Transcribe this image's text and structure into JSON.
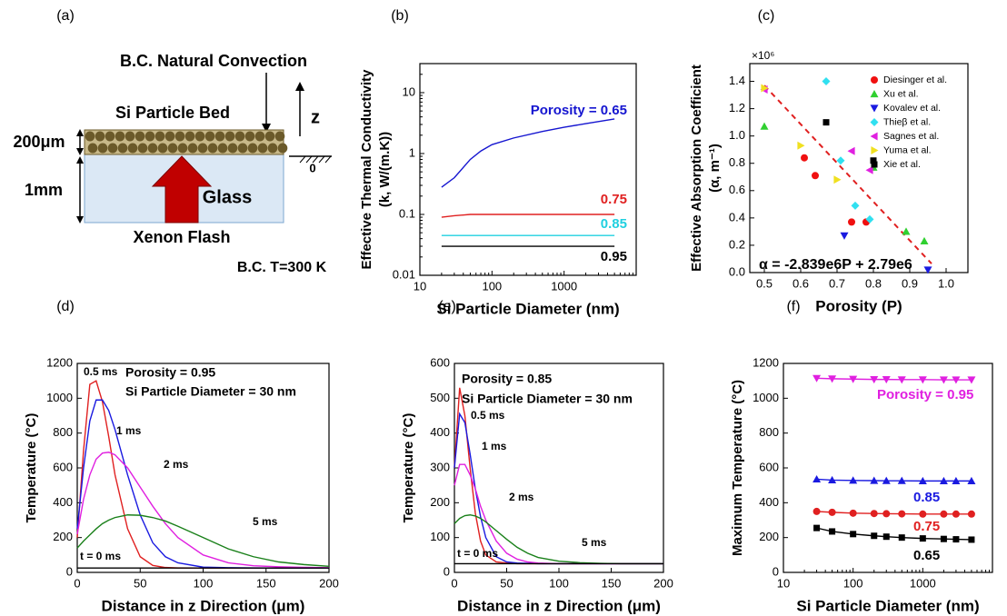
{
  "diagram": {
    "label": "(a)",
    "top_bc": "B.C. Natural Convection",
    "bed": "Si Particle Bed",
    "thickness_bed": "200μm",
    "thickness_glass": "1mm",
    "glass": "Glass",
    "source": "Xenon Flash",
    "bottom_bc": "B.C. T=300 K",
    "z_axis": "z",
    "origin": "0"
  },
  "chart_data": [
    {
      "type": "line",
      "label": "(b)",
      "xlabel": "Si Particle Diameter (nm)",
      "ylabel": [
        "Effective Thermal Conductivity",
        "(k, W/(m.K))"
      ],
      "xscale": "log",
      "yscale": "log",
      "xlim": [
        10,
        10000
      ],
      "ylim": [
        0.01,
        30
      ],
      "xticks": [
        10,
        100,
        1000
      ],
      "yticks": [
        0.01,
        0.1,
        1,
        10
      ],
      "x": [
        20,
        30,
        50,
        70,
        100,
        200,
        500,
        1000,
        2000,
        5000
      ],
      "series": [
        {
          "name": "Porosity = 0.65",
          "color": "#1515d0",
          "values": [
            0.28,
            0.4,
            0.8,
            1.1,
            1.4,
            1.8,
            2.3,
            2.7,
            3.1,
            3.7
          ]
        },
        {
          "name": "0.75",
          "color": "#e02020",
          "values": [
            0.09,
            0.095,
            0.1,
            0.1,
            0.1,
            0.1,
            0.1,
            0.1,
            0.1,
            0.1
          ]
        },
        {
          "name": "0.85",
          "color": "#20d0e0",
          "values": [
            0.045,
            0.045,
            0.045,
            0.045,
            0.045,
            0.045,
            0.045,
            0.045,
            0.045,
            0.045
          ]
        },
        {
          "name": "0.95",
          "color": "#000000",
          "values": [
            0.03,
            0.03,
            0.03,
            0.03,
            0.03,
            0.03,
            0.03,
            0.03,
            0.03,
            0.03
          ]
        }
      ]
    },
    {
      "type": "scatter",
      "label": "(c)",
      "xlabel": "Porosity (P)",
      "ylabel": [
        "Effective Absorption Coefficient",
        "(α, m⁻¹)"
      ],
      "xlim": [
        0.46,
        1.06
      ],
      "ylim": [
        0,
        1.53
      ],
      "xticks": [
        0.5,
        0.6,
        0.7,
        0.8,
        0.9,
        {
          "value": 1.0,
          "label": "1.0"
        }
      ],
      "yticks": [
        {
          "value": 0,
          "label": "0.0"
        },
        0.2,
        0.4,
        0.6,
        0.8,
        {
          "value": 1.0,
          "label": "1.0"
        },
        1.2,
        1.4
      ],
      "y_multiplier": "×10⁶",
      "legend": "upper right",
      "annotations": [
        "α = -2.839e6P + 2.79e6"
      ],
      "fit": {
        "color": "#e02020",
        "dash": true,
        "x": [
          0.5,
          0.96
        ],
        "values": [
          1.37,
          0.065
        ]
      },
      "series": [
        {
          "name": "Diesinger et al.",
          "color": "#f01010",
          "marker": "circle",
          "x": [
            0.61,
            0.64,
            0.74,
            0.78
          ],
          "values": [
            0.84,
            0.71,
            0.37,
            0.37
          ]
        },
        {
          "name": "Xu et al.",
          "color": "#30d030",
          "marker": "triangle-up",
          "x": [
            0.5,
            0.8,
            0.89,
            0.94
          ],
          "values": [
            1.07,
            0.77,
            0.3,
            0.23
          ]
        },
        {
          "name": "Kovalev et al.",
          "color": "#1a1ae0",
          "marker": "triangle-down",
          "x": [
            0.72,
            0.95
          ],
          "values": [
            0.27,
            0.02
          ]
        },
        {
          "name": "Thieβ et al.",
          "color": "#30e0f0",
          "marker": "diamond",
          "x": [
            0.67,
            0.71,
            0.75,
            0.79
          ],
          "values": [
            1.4,
            0.82,
            0.49,
            0.39
          ]
        },
        {
          "name": "Sagnes et al.",
          "color": "#e020e0",
          "marker": "triangle-left",
          "x": [
            0.5,
            0.74,
            0.79
          ],
          "values": [
            1.34,
            0.89,
            0.75
          ]
        },
        {
          "name": "Yuma et al.",
          "color": "#f0e020",
          "marker": "triangle-right",
          "x": [
            0.5,
            0.6,
            0.7
          ],
          "values": [
            1.35,
            0.93,
            0.68
          ]
        },
        {
          "name": "Xie et al.",
          "color": "#000000",
          "marker": "square",
          "x": [
            0.67,
            0.8
          ],
          "values": [
            1.1,
            0.82
          ]
        }
      ]
    },
    {
      "type": "line",
      "label": "(d)",
      "xlabel": "Distance in z Direction (μm)",
      "ylabel": "Temperature (°C)",
      "xlim": [
        0,
        200
      ],
      "ylim": [
        0,
        1200
      ],
      "xticks": [
        0,
        50,
        100,
        150,
        200
      ],
      "yticks": [
        0,
        200,
        400,
        600,
        800,
        1000,
        1200
      ],
      "annotations": [
        "Porosity = 0.95",
        "Si Particle Diameter = 30 nm"
      ],
      "x": [
        0,
        5,
        10,
        15,
        20,
        25,
        30,
        40,
        50,
        60,
        70,
        80,
        100,
        120,
        140,
        160,
        180,
        200
      ],
      "series": [
        {
          "name": "0.5 ms",
          "color": "#e02020",
          "values": [
            200,
            700,
            1080,
            1100,
            980,
            780,
            560,
            250,
            90,
            40,
            28,
            26,
            25,
            25,
            25,
            25,
            25,
            25
          ]
        },
        {
          "name": "1 ms",
          "color": "#1a1ae0",
          "values": [
            250,
            600,
            870,
            990,
            990,
            930,
            820,
            560,
            330,
            170,
            90,
            55,
            30,
            27,
            26,
            25,
            25,
            25
          ]
        },
        {
          "name": "2 ms",
          "color": "#e020e0",
          "values": [
            220,
            420,
            560,
            650,
            685,
            690,
            675,
            600,
            490,
            380,
            280,
            200,
            100,
            55,
            38,
            32,
            29,
            27
          ]
        },
        {
          "name": "5 ms",
          "color": "#1a801a",
          "values": [
            140,
            180,
            215,
            250,
            280,
            300,
            315,
            330,
            328,
            315,
            295,
            265,
            200,
            135,
            90,
            60,
            45,
            35
          ]
        },
        {
          "name": "t = 0 ms",
          "color": "#000000",
          "values": [
            25,
            25,
            25,
            25,
            25,
            25,
            25,
            25,
            25,
            25,
            25,
            25,
            25,
            25,
            25,
            25,
            25,
            25
          ]
        }
      ]
    },
    {
      "type": "line",
      "label": "(e)",
      "xlabel": "Distance in z Direction (μm)",
      "ylabel": "Temperature (°C)",
      "xlim": [
        0,
        200
      ],
      "ylim": [
        0,
        600
      ],
      "xticks": [
        0,
        50,
        100,
        150,
        200
      ],
      "yticks": [
        0,
        100,
        200,
        300,
        400,
        500,
        600
      ],
      "annotations": [
        "Porosity = 0.85",
        "Si Particle Diameter = 30 nm"
      ],
      "x": [
        0,
        5,
        10,
        15,
        20,
        25,
        30,
        40,
        50,
        60,
        70,
        80,
        100,
        120,
        140,
        160,
        180,
        200
      ],
      "series": [
        {
          "name": "0.5 ms",
          "color": "#e02020",
          "values": [
            300,
            530,
            450,
            300,
            170,
            90,
            50,
            30,
            27,
            25,
            25,
            25,
            25,
            25,
            25,
            25,
            25,
            25
          ]
        },
        {
          "name": "1 ms",
          "color": "#1a1ae0",
          "values": [
            300,
            455,
            430,
            340,
            240,
            160,
            100,
            45,
            30,
            27,
            26,
            25,
            25,
            25,
            25,
            25,
            25,
            25
          ]
        },
        {
          "name": "2 ms",
          "color": "#e020e0",
          "values": [
            250,
            310,
            310,
            280,
            240,
            190,
            150,
            90,
            55,
            38,
            30,
            27,
            25,
            25,
            25,
            25,
            25,
            25
          ]
        },
        {
          "name": "5 ms",
          "color": "#1a801a",
          "values": [
            140,
            155,
            163,
            165,
            162,
            155,
            145,
            120,
            95,
            72,
            55,
            43,
            32,
            28,
            26,
            25,
            25,
            25
          ]
        },
        {
          "name": "t = 0 ms",
          "color": "#000000",
          "values": [
            25,
            25,
            25,
            25,
            25,
            25,
            25,
            25,
            25,
            25,
            25,
            25,
            25,
            25,
            25,
            25,
            25,
            25
          ]
        }
      ]
    },
    {
      "type": "line",
      "label": "(f)",
      "xlabel": "Si Particle Diameter (nm)",
      "ylabel": "Maximum Temperature (°C)",
      "xscale": "log",
      "xlim": [
        10,
        10000
      ],
      "ylim": [
        0,
        1200
      ],
      "xticks": [
        10,
        100,
        1000
      ],
      "yticks": [
        0,
        200,
        400,
        600,
        800,
        1000,
        1200
      ],
      "x": [
        30,
        50,
        100,
        200,
        300,
        500,
        1000,
        2000,
        3000,
        5000
      ],
      "series": [
        {
          "name": "Porosity = 0.95",
          "color": "#e020e0",
          "marker": "triangle-down",
          "values": [
            1115,
            1112,
            1110,
            1108,
            1108,
            1107,
            1107,
            1106,
            1106,
            1106
          ]
        },
        {
          "name": "0.85",
          "color": "#1a1ae0",
          "marker": "triangle-up",
          "values": [
            535,
            530,
            528,
            527,
            526,
            526,
            525,
            525,
            525,
            525
          ]
        },
        {
          "name": "0.75",
          "color": "#e02020",
          "marker": "circle",
          "values": [
            350,
            345,
            340,
            338,
            337,
            336,
            335,
            335,
            335,
            335
          ]
        },
        {
          "name": "0.65",
          "color": "#000000",
          "marker": "square",
          "values": [
            255,
            235,
            220,
            210,
            205,
            200,
            195,
            192,
            190,
            188
          ]
        }
      ]
    }
  ]
}
